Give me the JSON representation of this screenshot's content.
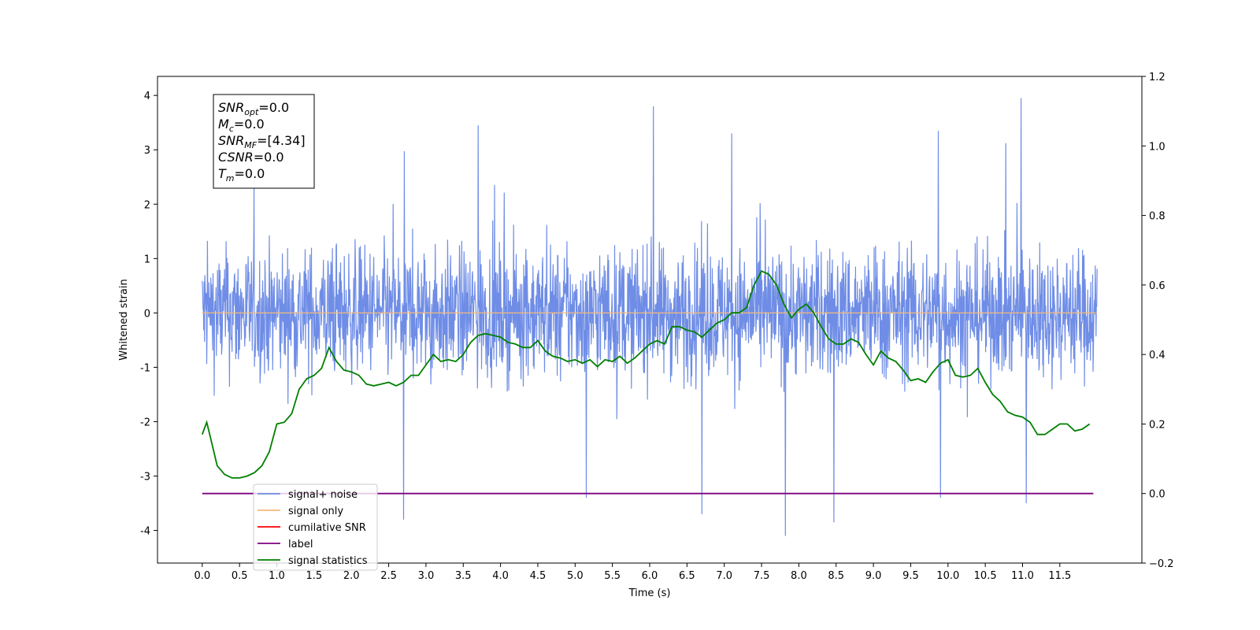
{
  "chart_data": {
    "type": "line",
    "xlabel": "Time (s)",
    "ylabel": "Whitened strain",
    "xlim": [
      -0.6,
      12.6
    ],
    "ylim": [
      -4.6,
      4.35
    ],
    "y2lim": [
      -0.2,
      1.2
    ],
    "x_ticks": [
      "0.0",
      "0.5",
      "1.0",
      "1.5",
      "2.0",
      "2.5",
      "3.0",
      "3.5",
      "4.0",
      "4.5",
      "5.0",
      "5.5",
      "6.0",
      "6.5",
      "7.0",
      "7.5",
      "8.0",
      "8.5",
      "9.0",
      "9.5",
      "10.0",
      "10.5",
      "11.0",
      "11.5"
    ],
    "y_ticks": [
      "4",
      "3",
      "2",
      "1",
      "0",
      "-1",
      "-2",
      "-3",
      "-4"
    ],
    "y2_ticks": [
      "1.2",
      "1.0",
      "0.8",
      "0.6",
      "0.4",
      "0.2",
      "0.0",
      "−0.2"
    ],
    "noise_color": "#6f8de6",
    "noise_duration": 12.0,
    "noise_samples": 2400,
    "noise_spikes": [
      {
        "x": 6.05,
        "y": 3.8
      },
      {
        "x": 10.98,
        "y": 3.95
      },
      {
        "x": 3.7,
        "y": 3.45
      },
      {
        "x": 9.87,
        "y": 3.35
      },
      {
        "x": 7.1,
        "y": 3.3
      },
      {
        "x": 2.7,
        "y": -3.8
      },
      {
        "x": 7.82,
        "y": -4.1
      },
      {
        "x": 8.47,
        "y": -3.85
      },
      {
        "x": 6.7,
        "y": -3.7
      },
      {
        "x": 11.05,
        "y": -3.5
      },
      {
        "x": 9.9,
        "y": -3.4
      },
      {
        "x": 5.15,
        "y": -3.4
      }
    ],
    "series": [
      {
        "name": "signal only",
        "axis": "left",
        "color": "#f5b97a",
        "x": [
          0,
          12
        ],
        "y": [
          0,
          0
        ]
      },
      {
        "name": "label",
        "axis": "right",
        "color": "#800080",
        "x": [
          0,
          11.95
        ],
        "y": [
          0,
          0
        ]
      },
      {
        "name": "signal statistics",
        "axis": "right",
        "color": "#007f00",
        "x": [
          0.0,
          0.06,
          0.1,
          0.2,
          0.3,
          0.4,
          0.5,
          0.6,
          0.7,
          0.8,
          0.9,
          1.0,
          1.1,
          1.2,
          1.3,
          1.4,
          1.5,
          1.6,
          1.7,
          1.8,
          1.9,
          2.0,
          2.1,
          2.2,
          2.3,
          2.4,
          2.5,
          2.6,
          2.7,
          2.8,
          2.9,
          3.0,
          3.1,
          3.2,
          3.3,
          3.4,
          3.5,
          3.6,
          3.7,
          3.8,
          3.9,
          4.0,
          4.1,
          4.2,
          4.3,
          4.4,
          4.5,
          4.6,
          4.7,
          4.8,
          4.9,
          5.0,
          5.1,
          5.2,
          5.3,
          5.4,
          5.5,
          5.6,
          5.7,
          5.8,
          5.9,
          6.0,
          6.1,
          6.2,
          6.3,
          6.4,
          6.5,
          6.6,
          6.7,
          6.8,
          6.9,
          7.0,
          7.1,
          7.2,
          7.3,
          7.4,
          7.5,
          7.6,
          7.7,
          7.8,
          7.9,
          8.0,
          8.1,
          8.2,
          8.3,
          8.4,
          8.5,
          8.6,
          8.7,
          8.8,
          8.9,
          9.0,
          9.1,
          9.2,
          9.3,
          9.4,
          9.5,
          9.6,
          9.7,
          9.8,
          9.9,
          10.0,
          10.1,
          10.2,
          10.3,
          10.4,
          10.5,
          10.6,
          10.7,
          10.8,
          10.9,
          11.0,
          11.1,
          11.2,
          11.3,
          11.4,
          11.5,
          11.6,
          11.7,
          11.8,
          11.9
        ],
        "y": [
          0.17,
          0.205,
          0.17,
          0.08,
          0.055,
          0.045,
          0.045,
          0.05,
          0.06,
          0.08,
          0.12,
          0.2,
          0.205,
          0.23,
          0.3,
          0.33,
          0.34,
          0.36,
          0.42,
          0.38,
          0.355,
          0.35,
          0.34,
          0.315,
          0.31,
          0.315,
          0.32,
          0.31,
          0.32,
          0.34,
          0.34,
          0.37,
          0.4,
          0.38,
          0.385,
          0.38,
          0.4,
          0.435,
          0.455,
          0.46,
          0.455,
          0.45,
          0.435,
          0.43,
          0.42,
          0.42,
          0.44,
          0.41,
          0.395,
          0.39,
          0.38,
          0.385,
          0.375,
          0.385,
          0.365,
          0.385,
          0.38,
          0.395,
          0.375,
          0.39,
          0.41,
          0.43,
          0.44,
          0.43,
          0.48,
          0.48,
          0.47,
          0.465,
          0.45,
          0.47,
          0.49,
          0.5,
          0.52,
          0.52,
          0.535,
          0.6,
          0.64,
          0.63,
          0.6,
          0.545,
          0.505,
          0.53,
          0.545,
          0.52,
          0.48,
          0.445,
          0.43,
          0.43,
          0.445,
          0.435,
          0.4,
          0.37,
          0.41,
          0.39,
          0.38,
          0.355,
          0.325,
          0.33,
          0.32,
          0.35,
          0.375,
          0.385,
          0.34,
          0.335,
          0.34,
          0.36,
          0.32,
          0.285,
          0.265,
          0.235,
          0.225,
          0.22,
          0.205,
          0.17,
          0.17,
          0.185,
          0.2,
          0.2,
          0.18,
          0.185,
          0.2
        ]
      }
    ],
    "legend": {
      "placement": "lower-left",
      "entries": [
        {
          "label": "signal+ noise",
          "color": "#6f8de6"
        },
        {
          "label": "signal only",
          "color": "#f5b97a"
        },
        {
          "label": "cumilative SNR",
          "color": "#ff0000"
        },
        {
          "label": "label",
          "color": "#800080"
        },
        {
          "label": "signal statistics",
          "color": "#007f00"
        }
      ]
    },
    "annotation": {
      "lines": [
        {
          "base": "SNR",
          "sub": "opt",
          "value": "=0.0"
        },
        {
          "base": "M",
          "sub": "c",
          "value": "=0.0"
        },
        {
          "base": "SNR",
          "sub": "MF",
          "value": "=[4.34]"
        },
        {
          "base": "CSNR",
          "sub": "",
          "value": "=0.0"
        },
        {
          "base": "T",
          "sub": "m",
          "value": "=0.0"
        }
      ]
    }
  }
}
